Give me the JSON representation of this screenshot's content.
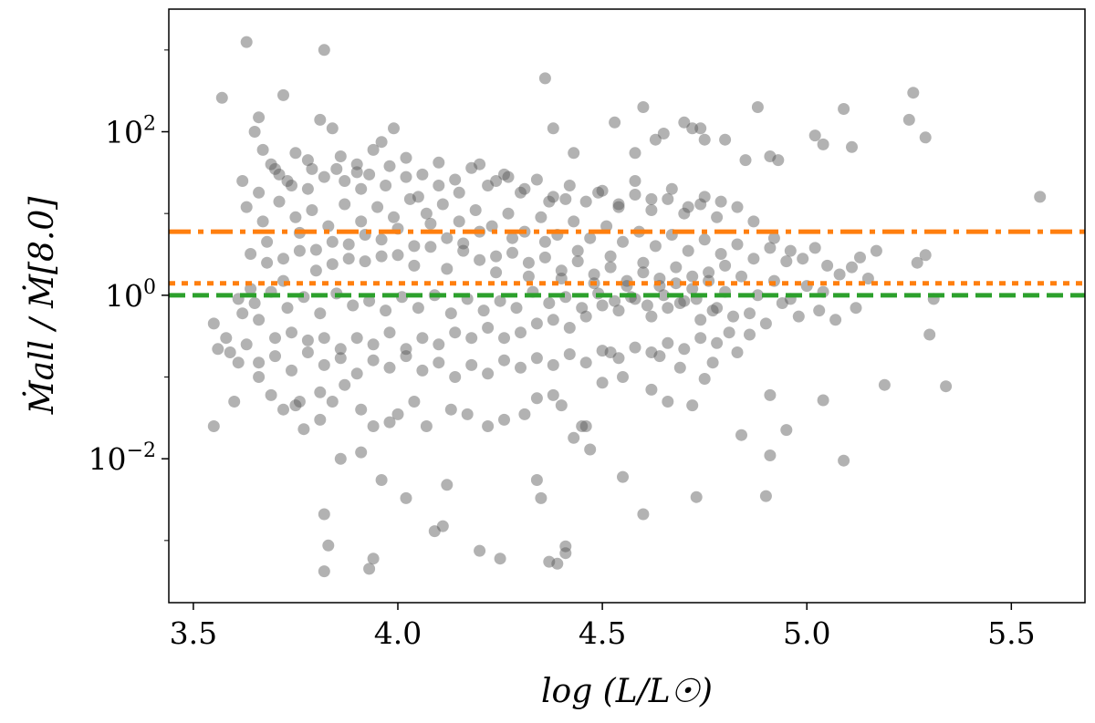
{
  "chart_data": {
    "type": "scatter",
    "title": "",
    "xlabel": "log (L/L☉)",
    "ylabel": "Ṁall / Ṁ[8.0]",
    "xlim": [
      3.44,
      5.68
    ],
    "ylim_log10": [
      -3.76,
      3.5
    ],
    "yscale": "log",
    "x_ticks": [
      3.5,
      4.0,
      4.5,
      5.0,
      5.5
    ],
    "x_tick_labels": [
      "3.5",
      "4.0",
      "4.5",
      "5.0",
      "5.5"
    ],
    "y_ticks": [
      0.01,
      1,
      100
    ],
    "y_tick_labels": [
      {
        "base": "10",
        "exp": "−2"
      },
      {
        "base": "10",
        "exp": "0"
      },
      {
        "base": "10",
        "exp": "2"
      }
    ],
    "grid": false,
    "legend": "none",
    "marker_color": "#555555",
    "marker_alpha": 0.45,
    "reference_lines": [
      {
        "y": 6.0,
        "color": "#ff7f0e",
        "style": "dashdot"
      },
      {
        "y": 1.4,
        "color": "#ff7f0e",
        "style": "dotted"
      },
      {
        "y": 1.0,
        "color": "#2ca02c",
        "style": "dashed"
      }
    ],
    "points": [
      [
        3.63,
        1250
      ],
      [
        3.82,
        1000
      ],
      [
        3.57,
        260
      ],
      [
        3.66,
        150
      ],
      [
        3.72,
        280
      ],
      [
        3.81,
        140
      ],
      [
        3.84,
        110
      ],
      [
        3.9,
        40
      ],
      [
        3.96,
        75
      ],
      [
        3.99,
        110
      ],
      [
        4.36,
        450
      ],
      [
        4.38,
        110
      ],
      [
        4.43,
        55
      ],
      [
        4.53,
        130
      ],
      [
        4.58,
        55
      ],
      [
        4.6,
        200
      ],
      [
        4.63,
        80
      ],
      [
        4.65,
        95
      ],
      [
        4.7,
        130
      ],
      [
        4.72,
        110
      ],
      [
        4.74,
        110
      ],
      [
        4.75,
        80
      ],
      [
        4.8,
        80
      ],
      [
        4.85,
        45
      ],
      [
        4.88,
        200
      ],
      [
        4.91,
        50
      ],
      [
        4.93,
        45
      ],
      [
        5.02,
        90
      ],
      [
        5.04,
        70
      ],
      [
        5.09,
        190
      ],
      [
        5.11,
        65
      ],
      [
        5.26,
        300
      ],
      [
        5.29,
        85
      ],
      [
        5.25,
        140
      ],
      [
        5.57,
        16
      ],
      [
        5.27,
        2.5
      ],
      [
        5.29,
        3.1
      ],
      [
        5.31,
        0.9
      ],
      [
        5.3,
        0.33
      ],
      [
        5.34,
        0.077
      ],
      [
        5.19,
        0.08
      ],
      [
        5.09,
        0.0095
      ],
      [
        5.04,
        0.052
      ],
      [
        4.91,
        0.011
      ],
      [
        4.9,
        0.0035
      ],
      [
        4.83,
        0.2
      ],
      [
        4.81,
        0.35
      ],
      [
        4.77,
        0.15
      ],
      [
        4.84,
        0.0195
      ],
      [
        4.95,
        0.0225
      ],
      [
        4.91,
        0.06
      ],
      [
        4.73,
        0.0034
      ],
      [
        4.72,
        0.045
      ],
      [
        4.66,
        0.05
      ],
      [
        4.62,
        0.07
      ],
      [
        4.6,
        0.0021
      ],
      [
        4.55,
        0.006
      ],
      [
        4.52,
        0.2
      ],
      [
        4.47,
        0.013
      ],
      [
        4.45,
        0.025
      ],
      [
        4.4,
        0.045
      ],
      [
        4.38,
        0.06
      ],
      [
        4.41,
        0.00085
      ],
      [
        4.41,
        0.0007
      ],
      [
        4.37,
        0.00055
      ],
      [
        4.34,
        0.0055
      ],
      [
        4.39,
        0.00052
      ],
      [
        4.35,
        0.0033
      ],
      [
        4.25,
        0.0006
      ],
      [
        4.2,
        0.00075
      ],
      [
        4.11,
        0.0015
      ],
      [
        4.12,
        0.0048
      ],
      [
        4.09,
        0.0013
      ],
      [
        4.02,
        0.0033
      ],
      [
        3.96,
        0.0055
      ],
      [
        3.91,
        0.012
      ],
      [
        3.94,
        0.0006
      ],
      [
        3.86,
        0.01
      ],
      [
        3.82,
        0.0021
      ],
      [
        3.83,
        0.00087
      ],
      [
        3.82,
        0.00042
      ],
      [
        3.93,
        0.00045
      ],
      [
        3.77,
        0.023
      ],
      [
        3.76,
        0.05
      ],
      [
        3.81,
        0.03
      ],
      [
        3.55,
        0.025
      ],
      [
        3.6,
        0.05
      ],
      [
        3.55,
        0.45
      ],
      [
        3.56,
        0.22
      ],
      [
        3.58,
        0.3
      ],
      [
        3.59,
        0.2
      ],
      [
        3.61,
        0.15
      ],
      [
        3.63,
        0.25
      ],
      [
        3.66,
        0.1
      ],
      [
        3.69,
        0.06
      ],
      [
        3.72,
        0.04
      ],
      [
        3.75,
        0.045
      ],
      [
        3.81,
        0.065
      ],
      [
        3.84,
        0.05
      ],
      [
        3.87,
        0.08
      ],
      [
        3.91,
        0.04
      ],
      [
        3.94,
        0.025
      ],
      [
        3.98,
        0.028
      ],
      [
        4.0,
        0.035
      ],
      [
        4.04,
        0.05
      ],
      [
        4.07,
        0.025
      ],
      [
        4.13,
        0.04
      ],
      [
        4.17,
        0.035
      ],
      [
        4.22,
        0.025
      ],
      [
        4.26,
        0.03
      ],
      [
        4.31,
        0.035
      ],
      [
        4.34,
        0.055
      ],
      [
        4.46,
        0.025
      ],
      [
        4.43,
        0.018
      ],
      [
        4.5,
        0.085
      ],
      [
        4.55,
        0.1
      ],
      [
        4.64,
        0.18
      ],
      [
        4.69,
        0.13
      ],
      [
        4.75,
        0.095
      ],
      [
        3.65,
        100
      ],
      [
        3.67,
        60
      ],
      [
        3.69,
        40
      ],
      [
        3.71,
        30
      ],
      [
        3.73,
        25
      ],
      [
        3.75,
        55
      ],
      [
        3.78,
        20
      ],
      [
        3.79,
        35
      ],
      [
        3.85,
        35
      ],
      [
        3.87,
        25
      ],
      [
        3.91,
        20
      ],
      [
        3.93,
        30
      ],
      [
        3.97,
        22
      ],
      [
        4.02,
        28
      ],
      [
        4.05,
        16
      ],
      [
        4.1,
        22
      ],
      [
        4.15,
        18
      ],
      [
        4.2,
        40
      ],
      [
        4.24,
        25
      ],
      [
        4.27,
        28
      ],
      [
        4.31,
        20
      ],
      [
        4.37,
        14
      ],
      [
        4.41,
        15
      ],
      [
        4.49,
        18
      ],
      [
        4.54,
        12
      ],
      [
        4.58,
        25
      ],
      [
        4.62,
        15
      ],
      [
        4.67,
        20
      ],
      [
        4.71,
        12
      ],
      [
        4.75,
        16
      ],
      [
        4.79,
        14
      ],
      [
        4.83,
        12
      ],
      [
        4.87,
        8
      ],
      [
        4.92,
        5
      ],
      [
        4.96,
        3.5
      ],
      [
        4.99,
        2.8
      ],
      [
        5.02,
        3.8
      ],
      [
        5.05,
        2.3
      ],
      [
        5.08,
        1.8
      ],
      [
        5.11,
        2.2
      ],
      [
        5.13,
        2.9
      ],
      [
        5.15,
        1.6
      ],
      [
        5.17,
        3.5
      ],
      [
        5.12,
        0.7
      ],
      [
        5.07,
        0.5
      ],
      [
        5.03,
        0.65
      ],
      [
        4.98,
        0.55
      ],
      [
        4.94,
        0.8
      ],
      [
        4.9,
        0.45
      ],
      [
        4.86,
        0.6
      ],
      [
        4.82,
        0.55
      ],
      [
        4.78,
        0.7
      ],
      [
        4.74,
        0.5
      ],
      [
        4.7,
        0.85
      ],
      [
        4.66,
        0.7
      ],
      [
        4.62,
        0.55
      ],
      [
        4.58,
        0.9
      ],
      [
        4.54,
        0.65
      ],
      [
        4.5,
        0.75
      ],
      [
        4.46,
        0.55
      ],
      [
        4.42,
        0.4
      ],
      [
        4.38,
        0.5
      ],
      [
        4.34,
        0.45
      ],
      [
        4.3,
        0.35
      ],
      [
        4.26,
        0.3
      ],
      [
        4.22,
        0.4
      ],
      [
        4.18,
        0.3
      ],
      [
        4.14,
        0.35
      ],
      [
        4.1,
        0.25
      ],
      [
        4.06,
        0.3
      ],
      [
        4.02,
        0.22
      ],
      [
        3.98,
        0.35
      ],
      [
        3.94,
        0.25
      ],
      [
        3.9,
        0.3
      ],
      [
        3.86,
        0.22
      ],
      [
        3.82,
        0.3
      ],
      [
        3.78,
        0.28
      ],
      [
        3.74,
        0.35
      ],
      [
        3.7,
        0.3
      ],
      [
        3.66,
        0.5
      ],
      [
        3.62,
        0.6
      ],
      [
        3.64,
        1.2
      ],
      [
        3.68,
        2.5
      ],
      [
        3.72,
        1.5
      ],
      [
        3.76,
        3.5
      ],
      [
        3.8,
        2.0
      ],
      [
        3.84,
        4.5
      ],
      [
        3.88,
        2.8
      ],
      [
        3.92,
        5.5
      ],
      [
        3.96,
        3.0
      ],
      [
        4.0,
        6.5
      ],
      [
        4.04,
        4.0
      ],
      [
        4.08,
        7.5
      ],
      [
        4.12,
        5.0
      ],
      [
        4.16,
        3.5
      ],
      [
        4.2,
        6.0
      ],
      [
        4.24,
        3.0
      ],
      [
        4.28,
        5.0
      ],
      [
        4.32,
        2.5
      ],
      [
        4.36,
        4.5
      ],
      [
        4.4,
        2.0
      ],
      [
        4.44,
        3.5
      ],
      [
        4.48,
        1.8
      ],
      [
        4.52,
        3.0
      ],
      [
        4.56,
        1.5
      ],
      [
        4.6,
        2.5
      ],
      [
        4.64,
        1.3
      ],
      [
        4.68,
        2.2
      ],
      [
        4.72,
        1.2
      ],
      [
        4.76,
        1.9
      ],
      [
        4.8,
        1.1
      ],
      [
        4.84,
        1.7
      ],
      [
        4.88,
        1.0
      ],
      [
        4.92,
        1.5
      ],
      [
        4.96,
        0.9
      ],
      [
        5.0,
        1.3
      ],
      [
        5.04,
        1.1
      ],
      [
        3.63,
        12
      ],
      [
        3.67,
        8
      ],
      [
        3.71,
        14
      ],
      [
        3.75,
        9
      ],
      [
        3.79,
        11
      ],
      [
        3.83,
        7
      ],
      [
        3.87,
        13
      ],
      [
        3.91,
        8
      ],
      [
        3.95,
        12
      ],
      [
        3.99,
        9
      ],
      [
        4.03,
        15
      ],
      [
        4.07,
        10
      ],
      [
        4.11,
        13
      ],
      [
        4.15,
        8
      ],
      [
        4.19,
        11
      ],
      [
        4.23,
        7
      ],
      [
        4.27,
        10
      ],
      [
        4.31,
        6
      ],
      [
        4.35,
        9
      ],
      [
        4.39,
        5.5
      ],
      [
        4.43,
        8
      ],
      [
        4.47,
        5
      ],
      [
        4.51,
        7
      ],
      [
        4.55,
        4.5
      ],
      [
        4.59,
        6
      ],
      [
        4.63,
        4
      ],
      [
        4.67,
        5.5
      ],
      [
        4.71,
        3.5
      ],
      [
        4.75,
        4.8
      ],
      [
        4.79,
        3.2
      ],
      [
        4.83,
        4.2
      ],
      [
        4.87,
        2.8
      ],
      [
        4.91,
        3.8
      ],
      [
        4.95,
        2.6
      ],
      [
        3.61,
        0.9
      ],
      [
        3.65,
        0.8
      ],
      [
        3.69,
        1.1
      ],
      [
        3.73,
        0.7
      ],
      [
        3.77,
        0.95
      ],
      [
        3.81,
        0.6
      ],
      [
        3.85,
        1.05
      ],
      [
        3.89,
        0.75
      ],
      [
        3.93,
        0.85
      ],
      [
        3.97,
        0.65
      ],
      [
        4.01,
        0.95
      ],
      [
        4.05,
        0.7
      ],
      [
        4.09,
        1.0
      ],
      [
        4.13,
        0.6
      ],
      [
        4.17,
        0.9
      ],
      [
        4.21,
        0.65
      ],
      [
        4.25,
        0.85
      ],
      [
        4.29,
        0.7
      ],
      [
        4.33,
        1.1
      ],
      [
        4.37,
        0.8
      ],
      [
        4.41,
        0.95
      ],
      [
        4.45,
        0.7
      ],
      [
        4.49,
        1.05
      ],
      [
        4.53,
        0.85
      ],
      [
        4.57,
        0.95
      ],
      [
        4.61,
        0.75
      ],
      [
        4.65,
        1.0
      ],
      [
        4.69,
        0.8
      ],
      [
        4.73,
        0.9
      ],
      [
        4.77,
        0.65
      ],
      [
        3.64,
        3.2
      ],
      [
        3.68,
        4.5
      ],
      [
        3.72,
        2.8
      ],
      [
        3.76,
        5.8
      ],
      [
        3.8,
        3.6
      ],
      [
        3.84,
        2.4
      ],
      [
        3.88,
        4.2
      ],
      [
        3.92,
        2.6
      ],
      [
        3.96,
        4.8
      ],
      [
        4.0,
        3.1
      ],
      [
        4.04,
        2.3
      ],
      [
        4.08,
        3.9
      ],
      [
        4.12,
        2.1
      ],
      [
        4.16,
        4.3
      ],
      [
        4.2,
        2.7
      ],
      [
        4.24,
        1.9
      ],
      [
        4.28,
        3.3
      ],
      [
        4.32,
        1.7
      ],
      [
        4.36,
        2.9
      ],
      [
        4.4,
        1.6
      ],
      [
        4.44,
        2.6
      ],
      [
        4.48,
        1.4
      ],
      [
        4.52,
        2.2
      ],
      [
        4.56,
        1.3
      ],
      [
        4.6,
        1.9
      ],
      [
        4.64,
        1.6
      ],
      [
        4.68,
        1.4
      ],
      [
        4.72,
        1.7
      ],
      [
        4.76,
        1.5
      ],
      [
        4.8,
        2.3
      ],
      [
        3.66,
        0.15
      ],
      [
        3.7,
        0.18
      ],
      [
        3.74,
        0.12
      ],
      [
        3.78,
        0.2
      ],
      [
        3.82,
        0.14
      ],
      [
        3.86,
        0.17
      ],
      [
        3.9,
        0.11
      ],
      [
        3.94,
        0.16
      ],
      [
        3.98,
        0.13
      ],
      [
        4.02,
        0.18
      ],
      [
        4.06,
        0.12
      ],
      [
        4.1,
        0.15
      ],
      [
        4.14,
        0.1
      ],
      [
        4.18,
        0.14
      ],
      [
        4.22,
        0.11
      ],
      [
        4.26,
        0.16
      ],
      [
        4.3,
        0.13
      ],
      [
        4.34,
        0.17
      ],
      [
        4.38,
        0.14
      ],
      [
        4.42,
        0.19
      ],
      [
        4.46,
        0.15
      ],
      [
        4.5,
        0.21
      ],
      [
        4.54,
        0.17
      ],
      [
        4.58,
        0.23
      ],
      [
        4.62,
        0.2
      ],
      [
        4.66,
        0.26
      ],
      [
        4.7,
        0.22
      ],
      [
        4.74,
        0.3
      ],
      [
        4.78,
        0.26
      ],
      [
        4.86,
        0.33
      ],
      [
        3.62,
        25
      ],
      [
        3.66,
        18
      ],
      [
        3.7,
        35
      ],
      [
        3.74,
        22
      ],
      [
        3.78,
        45
      ],
      [
        3.82,
        28
      ],
      [
        3.86,
        50
      ],
      [
        3.9,
        32
      ],
      [
        3.94,
        60
      ],
      [
        3.98,
        38
      ],
      [
        4.02,
        48
      ],
      [
        4.06,
        30
      ],
      [
        4.1,
        42
      ],
      [
        4.14,
        26
      ],
      [
        4.18,
        36
      ],
      [
        4.22,
        22
      ],
      [
        4.26,
        30
      ],
      [
        4.3,
        18
      ],
      [
        4.34,
        26
      ],
      [
        4.38,
        16
      ],
      [
        4.42,
        22
      ],
      [
        4.46,
        14
      ],
      [
        4.5,
        19
      ],
      [
        4.54,
        13
      ],
      [
        4.58,
        17
      ],
      [
        4.62,
        11
      ],
      [
        4.66,
        15
      ],
      [
        4.7,
        10
      ],
      [
        4.74,
        13
      ],
      [
        4.78,
        9
      ]
    ]
  }
}
